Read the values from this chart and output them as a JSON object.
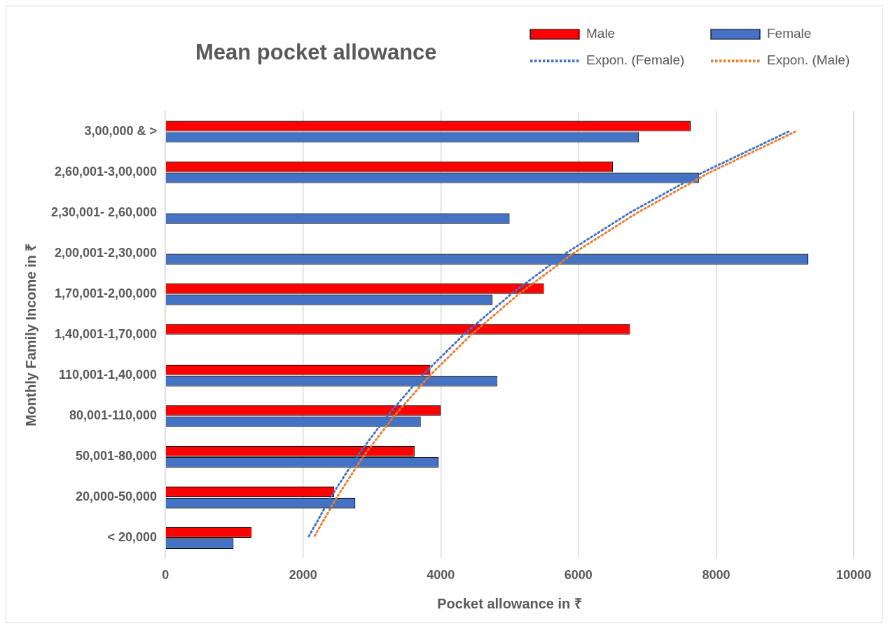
{
  "chart_data": {
    "type": "bar",
    "orientation": "horizontal",
    "title": "Mean pocket allowance",
    "xlabel": "Pocket allowance in ₹",
    "ylabel": "Monthly Family Income in ₹",
    "categories": [
      "3,00,000 & >",
      "2,60,001-3,00,000",
      "2,30,001- 2,60,000",
      "2,00,001-2,30,000",
      "1,70,001-2,00,000",
      "1,40,001-1,70,000",
      "110,001-1,40,000",
      "80,001-110,000",
      "50,001-80,000",
      "20,000-50,000",
      "< 20,000"
    ],
    "series": [
      {
        "name": "Male",
        "color": "#ff0000",
        "values": [
          7630,
          6500,
          null,
          null,
          5500,
          6750,
          3850,
          4000,
          3620,
          2450,
          1250
        ]
      },
      {
        "name": "Female",
        "color": "#4472c4",
        "values": [
          6880,
          7750,
          5000,
          9340,
          4750,
          null,
          4820,
          3710,
          3970,
          2760,
          990
        ]
      },
      {
        "name": "Expon. (Female)",
        "type": "line",
        "color": "#4472c4",
        "line_style": "dotted",
        "marker": "none",
        "values": [
          9050,
          7810,
          6740,
          5810,
          5020,
          4330,
          3730,
          3220,
          2780,
          2400,
          2070
        ]
      },
      {
        "name": "Expon. (Male)",
        "type": "line",
        "color": "#ed7d31",
        "line_style": "dotted",
        "marker": "none",
        "values": [
          9150,
          7910,
          6850,
          5920,
          5130,
          4440,
          3840,
          3320,
          2870,
          2490,
          2150
        ]
      }
    ],
    "xlim": [
      0,
      10000
    ],
    "xticks": [
      0,
      2000,
      4000,
      6000,
      8000,
      10000
    ],
    "grid": "x",
    "legend": "top right"
  }
}
